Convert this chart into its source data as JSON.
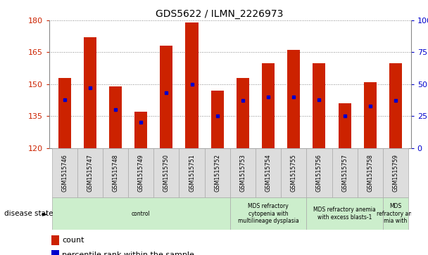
{
  "title": "GDS5622 / ILMN_2226973",
  "samples": [
    "GSM1515746",
    "GSM1515747",
    "GSM1515748",
    "GSM1515749",
    "GSM1515750",
    "GSM1515751",
    "GSM1515752",
    "GSM1515753",
    "GSM1515754",
    "GSM1515755",
    "GSM1515756",
    "GSM1515757",
    "GSM1515758",
    "GSM1515759"
  ],
  "counts": [
    153,
    172,
    149,
    137,
    168,
    179,
    147,
    153,
    160,
    166,
    160,
    141,
    151,
    160
  ],
  "percentile_ranks": [
    38,
    47,
    30,
    20,
    43,
    50,
    25,
    37,
    40,
    40,
    38,
    25,
    33,
    37
  ],
  "ylim_left": [
    120,
    180
  ],
  "ylim_right": [
    0,
    100
  ],
  "yticks_left": [
    120,
    135,
    150,
    165,
    180
  ],
  "yticks_right": [
    0,
    25,
    50,
    75,
    100
  ],
  "bar_color": "#cc2200",
  "dot_color": "#0000cc",
  "bar_width": 0.5,
  "disease_groups": [
    {
      "label": "control",
      "start": 0,
      "end": 7,
      "color": "#cceecc"
    },
    {
      "label": "MDS refractory\ncytopenia with\nmultilineage dysplasia",
      "start": 7,
      "end": 10,
      "color": "#cceecc"
    },
    {
      "label": "MDS refractory anemia\nwith excess blasts-1",
      "start": 10,
      "end": 13,
      "color": "#cceecc"
    },
    {
      "label": "MDS\nrefractory ane\nmia with",
      "start": 13,
      "end": 14,
      "color": "#cceecc"
    }
  ],
  "legend_count_label": "count",
  "legend_pct_label": "percentile rank within the sample",
  "disease_state_label": "disease state",
  "tick_label_bg": "#dddddd",
  "grid_color": "#888888",
  "fig_bg": "#ffffff"
}
